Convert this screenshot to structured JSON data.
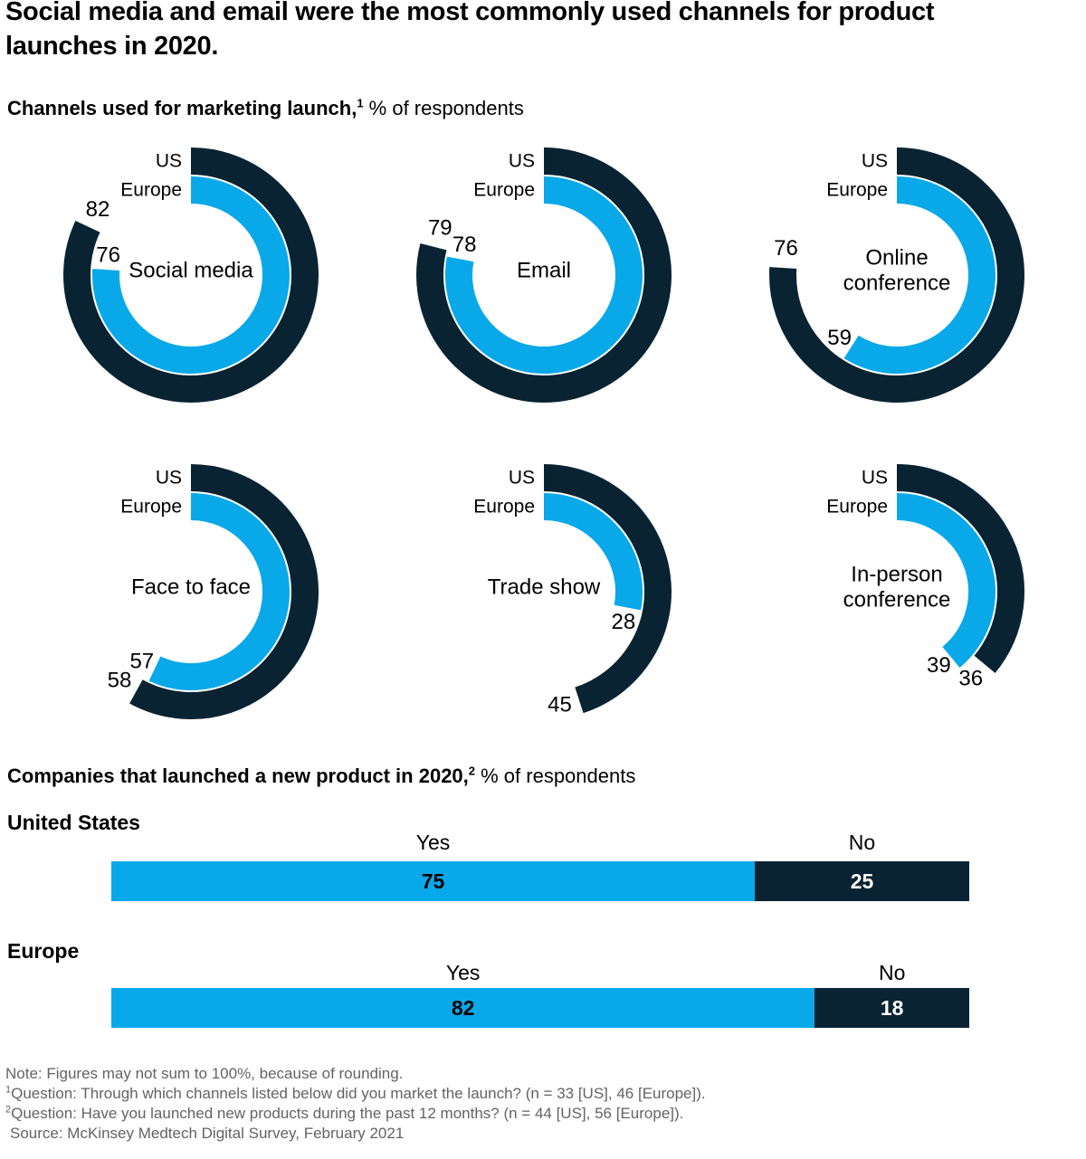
{
  "title": "Social media and email were the most commonly used channels for product launches in 2020.",
  "section1": {
    "heading_bold": "Channels used for marketing launch,",
    "heading_sup": "1",
    "heading_rest": " % of respondents"
  },
  "section2": {
    "heading_bold": "Companies that launched a new product in 2020,",
    "heading_sup": "2",
    "heading_rest": " % of respondents"
  },
  "colors": {
    "us_dark": "#0a2332",
    "europe_blue": "#09a8e9",
    "text_black": "#000000",
    "note_gray": "#636363",
    "value_on_blue": "#000000",
    "value_on_dark": "#ffffff"
  },
  "chart_data": [
    {
      "type": "donut-multiples",
      "title": "Channels used for marketing launch",
      "units": "% of respondents",
      "series": [
        {
          "name": "US",
          "color_key": "us_dark"
        },
        {
          "name": "Europe",
          "color_key": "europe_blue"
        }
      ],
      "donuts": [
        {
          "label": "Social media",
          "label_lines": [
            "Social media"
          ],
          "US": 82,
          "Europe": 76
        },
        {
          "label": "Email",
          "label_lines": [
            "Email"
          ],
          "US": 79,
          "Europe": 78
        },
        {
          "label": "Online conference",
          "label_lines": [
            "Online",
            "conference"
          ],
          "US": 76,
          "Europe": 59
        },
        {
          "label": "Face to face",
          "label_lines": [
            "Face to face"
          ],
          "US": 58,
          "Europe": 57
        },
        {
          "label": "Trade show",
          "label_lines": [
            "Trade show"
          ],
          "US": 45,
          "Europe": 28
        },
        {
          "label": "In-person conference",
          "label_lines": [
            "In-person",
            "conference"
          ],
          "US": 36,
          "Europe": 39
        }
      ]
    },
    {
      "type": "stacked-bar",
      "title": "Companies that launched a new product in 2020",
      "units": "% of respondents",
      "categories": [
        "Yes",
        "No"
      ],
      "rows": [
        {
          "label": "United States",
          "Yes": 75,
          "No": 25
        },
        {
          "label": "Europe",
          "Yes": 82,
          "No": 18
        }
      ],
      "xlim": [
        0,
        100
      ]
    }
  ],
  "notes": [
    {
      "sup": "",
      "text": "Note: Figures may not sum to 100%, because of rounding."
    },
    {
      "sup": "1",
      "text": "Question: Through which channels listed below did you market the launch? (n = 33 [US], 46 [Europe])."
    },
    {
      "sup": "2",
      "text": "Question: Have you launched new products during the past 12 months? (n = 44 [US], 56 [Europe])."
    },
    {
      "sup": "",
      "text": "Source: McKinsey Medtech Digital Survey, February 2021"
    }
  ]
}
